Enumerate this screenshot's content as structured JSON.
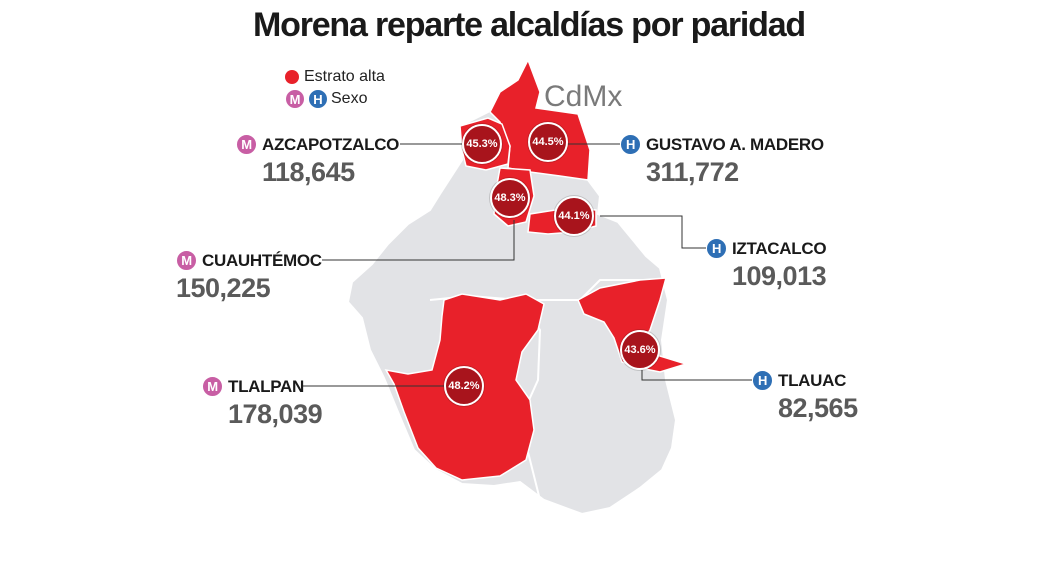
{
  "title": "Morena reparte alcaldías por paridad",
  "city_label": "CdMx",
  "legend": {
    "estrato_label": "Estrato alta",
    "sexo_label": "Sexo",
    "m_letter": "M",
    "h_letter": "H"
  },
  "colors": {
    "highlight": "#e8212a",
    "base": "#e2e3e6",
    "circle": "#a8141c",
    "mujer": "#c85ea4",
    "hombre": "#2e6fb5"
  },
  "alcaldias": [
    {
      "name": "AZCAPOTZALCO",
      "sex": "M",
      "value": "118,645",
      "pct": "45.3%"
    },
    {
      "name": "GUSTAVO A. MADERO",
      "sex": "H",
      "value": "311,772",
      "pct": "44.5%"
    },
    {
      "name": "CUAUHTÉMOC",
      "sex": "M",
      "value": "150,225",
      "pct": "48.3%"
    },
    {
      "name": "IZTACALCO",
      "sex": "H",
      "value": "109,013",
      "pct": "44.1%"
    },
    {
      "name": "TLALPAN",
      "sex": "M",
      "value": "178,039",
      "pct": "48.2%"
    },
    {
      "name": "TLAUAC",
      "sex": "H",
      "value": "82,565",
      "pct": "43.6%"
    }
  ]
}
